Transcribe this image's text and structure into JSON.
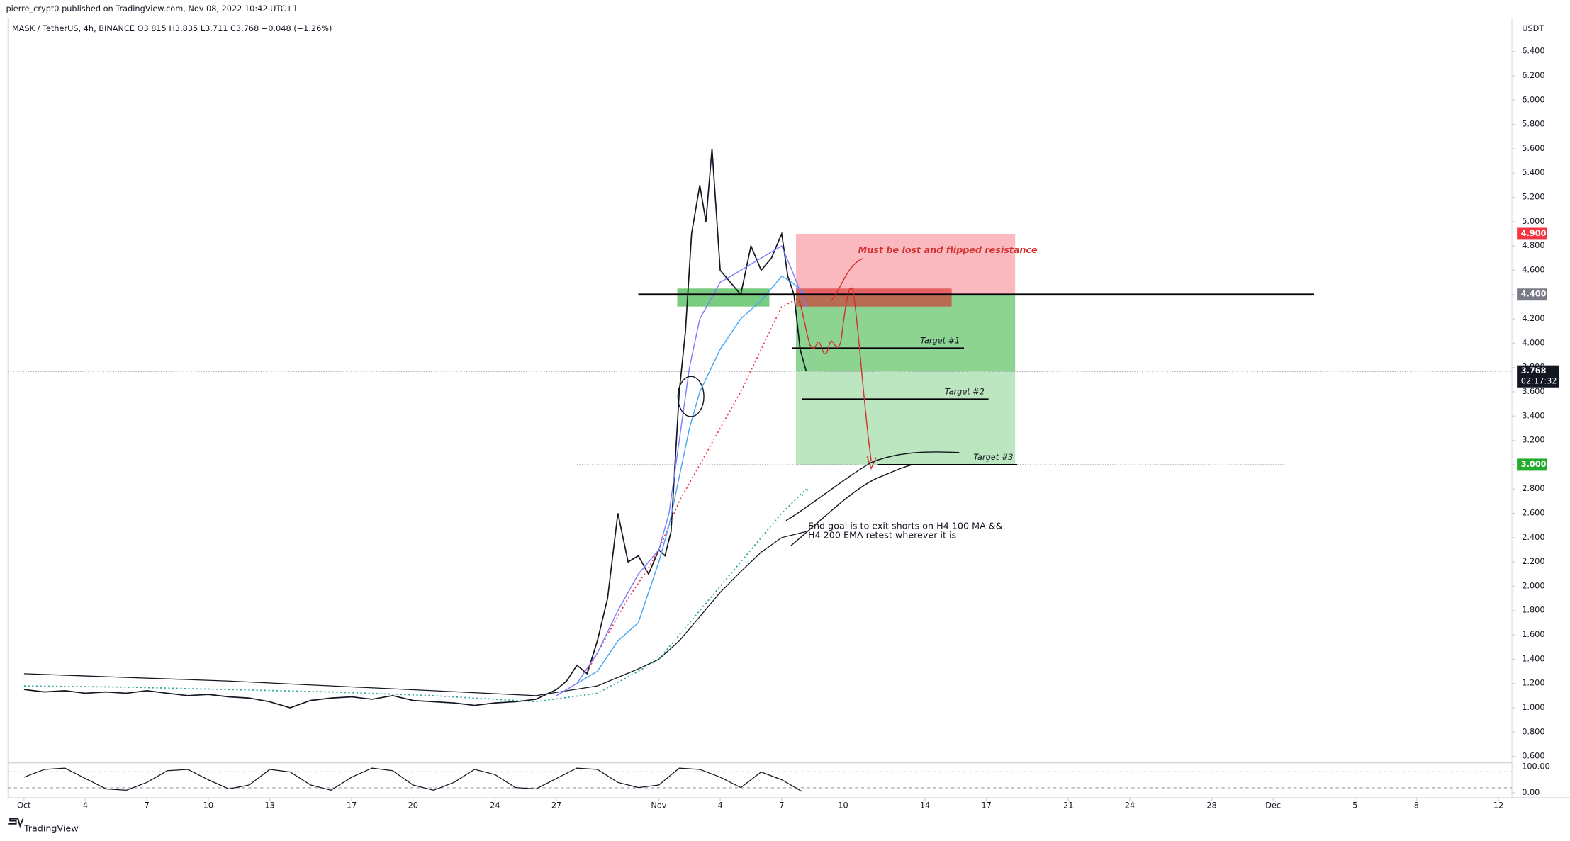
{
  "header": {
    "published": "pierre_crypt0 published on TradingView.com, Nov 08, 2022 10:42 UTC+1",
    "symbol": "MASK / TetherUS, 4h, BINANCE  O3.815  H3.835  L3.711  C3.768  −0.048 (−1.26%)",
    "currency": "USDT"
  },
  "footer": {
    "brand": "TradingView"
  },
  "chart_data": {
    "type": "line",
    "xlim": [
      -0.78,
      72.66
    ],
    "ylim": [
      0.5,
      6.6
    ],
    "xticks": [
      {
        "value": 0,
        "label": "Oct"
      },
      {
        "value": 3,
        "label": "4"
      },
      {
        "value": 6,
        "label": "7"
      },
      {
        "value": 9,
        "label": "10"
      },
      {
        "value": 12,
        "label": "13"
      },
      {
        "value": 16,
        "label": "17"
      },
      {
        "value": 19,
        "label": "20"
      },
      {
        "value": 23,
        "label": "24"
      },
      {
        "value": 26,
        "label": "27"
      },
      {
        "value": 31,
        "label": "Nov"
      },
      {
        "value": 34,
        "label": "4"
      },
      {
        "value": 37,
        "label": "7"
      },
      {
        "value": 40,
        "label": "10"
      },
      {
        "value": 44,
        "label": "14"
      },
      {
        "value": 47,
        "label": "17"
      },
      {
        "value": 51,
        "label": "21"
      },
      {
        "value": 54,
        "label": "24"
      },
      {
        "value": 58,
        "label": "28"
      },
      {
        "value": 61,
        "label": "Dec"
      },
      {
        "value": 65,
        "label": "5"
      },
      {
        "value": 68,
        "label": "8"
      },
      {
        "value": 72,
        "label": "12"
      }
    ],
    "yticks": [
      {
        "value": 0.6,
        "label": "0.600"
      },
      {
        "value": 0.8,
        "label": "0.800"
      },
      {
        "value": 1.0,
        "label": "1.000"
      },
      {
        "value": 1.2,
        "label": "1.200"
      },
      {
        "value": 1.4,
        "label": "1.400"
      },
      {
        "value": 1.6,
        "label": "1.600"
      },
      {
        "value": 1.8,
        "label": "1.800"
      },
      {
        "value": 2.0,
        "label": "2.000"
      },
      {
        "value": 2.2,
        "label": "2.200"
      },
      {
        "value": 2.4,
        "label": "2.400"
      },
      {
        "value": 2.6,
        "label": "2.600"
      },
      {
        "value": 2.8,
        "label": "2.800"
      },
      {
        "value": 3.0,
        "label": "3.000"
      },
      {
        "value": 3.2,
        "label": "3.200"
      },
      {
        "value": 3.4,
        "label": "3.400"
      },
      {
        "value": 3.6,
        "label": "3.600"
      },
      {
        "value": 3.8,
        "label": "3.800"
      },
      {
        "value": 4.0,
        "label": "4.000"
      },
      {
        "value": 4.2,
        "label": "4.200"
      },
      {
        "value": 4.4,
        "label": "4.400"
      },
      {
        "value": 4.6,
        "label": "4.600"
      },
      {
        "value": 4.8,
        "label": "4.800"
      },
      {
        "value": 5.0,
        "label": "5.000"
      },
      {
        "value": 5.2,
        "label": "5.200"
      },
      {
        "value": 5.4,
        "label": "5.400"
      },
      {
        "value": 5.6,
        "label": "5.600"
      },
      {
        "value": 5.8,
        "label": "5.800"
      },
      {
        "value": 6.0,
        "label": "6.000"
      },
      {
        "value": 6.2,
        "label": "6.200"
      },
      {
        "value": 6.4,
        "label": "6.400"
      }
    ],
    "series": [
      {
        "color": "#131722",
        "width": 1.2,
        "x": [
          0,
          1,
          2,
          3,
          4,
          5,
          6,
          7,
          8,
          9,
          10,
          11,
          12,
          13,
          14,
          15,
          16,
          17,
          18,
          19,
          20,
          21,
          22,
          23,
          24,
          25,
          26,
          26.5,
          27,
          27.5,
          28,
          28.5,
          29,
          29.5,
          30,
          30.5,
          31,
          31.3,
          31.6,
          32,
          32.3,
          32.6,
          33,
          33.3,
          33.6,
          34,
          34.5,
          35,
          35.5,
          36,
          36.5,
          37,
          37.3,
          37.6,
          37.9,
          38.2
        ],
        "values": [
          1.15,
          1.13,
          1.14,
          1.12,
          1.13,
          1.12,
          1.14,
          1.12,
          1.1,
          1.11,
          1.09,
          1.08,
          1.05,
          1.0,
          1.06,
          1.08,
          1.09,
          1.07,
          1.1,
          1.06,
          1.05,
          1.04,
          1.02,
          1.04,
          1.05,
          1.07,
          1.15,
          1.22,
          1.35,
          1.28,
          1.55,
          1.9,
          2.6,
          2.2,
          2.25,
          2.1,
          2.3,
          2.25,
          2.45,
          3.6,
          4.1,
          4.9,
          5.3,
          5.0,
          5.6,
          4.6,
          4.5,
          4.4,
          4.8,
          4.6,
          4.7,
          4.9,
          4.55,
          4.4,
          3.95,
          3.768
        ]
      },
      {
        "color": "#131722",
        "width": 0.9,
        "x": [
          0,
          5,
          10,
          15,
          20,
          25,
          28,
          30,
          31,
          32,
          33,
          34,
          35,
          36,
          37,
          38.2
        ],
        "values": [
          1.28,
          1.25,
          1.22,
          1.18,
          1.14,
          1.1,
          1.18,
          1.32,
          1.4,
          1.55,
          1.75,
          1.95,
          2.12,
          2.28,
          2.4,
          2.45
        ]
      },
      {
        "color": "#26a69a",
        "width": 1.2,
        "dash": "1.5 2.5",
        "x": [
          0,
          5,
          10,
          15,
          20,
          25,
          28,
          30,
          31,
          32,
          33,
          34,
          35,
          36,
          37,
          38.2
        ],
        "values": [
          1.18,
          1.17,
          1.15,
          1.13,
          1.1,
          1.05,
          1.12,
          1.3,
          1.4,
          1.6,
          1.8,
          2.0,
          2.2,
          2.4,
          2.6,
          2.8
        ]
      },
      {
        "color": "#f23645",
        "width": 1.2,
        "dash": "1.5 2.5",
        "x": [
          27.5,
          28.5,
          29.5,
          30.5,
          31,
          32,
          33,
          34,
          35,
          36,
          37,
          38.2
        ],
        "values": [
          1.3,
          1.6,
          1.9,
          2.15,
          2.3,
          2.7,
          3.0,
          3.3,
          3.6,
          3.95,
          4.3,
          4.4
        ]
      },
      {
        "color": "#7b7bff",
        "width": 1,
        "x": [
          26,
          27,
          28,
          29,
          30,
          31,
          31.5,
          32,
          32.5,
          33,
          34,
          35,
          36,
          37,
          37.5,
          38.2
        ],
        "values": [
          1.1,
          1.2,
          1.45,
          1.8,
          2.1,
          2.3,
          2.6,
          3.2,
          3.8,
          4.2,
          4.5,
          4.6,
          4.7,
          4.8,
          4.6,
          4.3
        ]
      },
      {
        "color": "#42a5f5",
        "width": 1,
        "x": [
          27,
          28,
          29,
          30,
          31,
          31.5,
          32,
          32.5,
          33,
          34,
          35,
          36,
          37,
          37.5,
          38.2
        ],
        "values": [
          1.2,
          1.3,
          1.55,
          1.7,
          2.2,
          2.5,
          2.9,
          3.3,
          3.6,
          3.95,
          4.2,
          4.35,
          4.55,
          4.5,
          4.4
        ]
      }
    ],
    "price_tags": [
      {
        "value": 4.9,
        "label": "4.900",
        "color": "#f23645"
      },
      {
        "value": 4.4,
        "label": "4.400",
        "color": "#787b86"
      },
      {
        "value": 3.768,
        "label": "3.768",
        "color": "#131722"
      },
      {
        "value": 3.0,
        "label": "3.000",
        "color": "#22ab2c"
      }
    ],
    "countdown": "02:17:32",
    "targets": [
      {
        "label": "Target #1",
        "value": 3.96
      },
      {
        "label": "Target #2",
        "value": 3.54
      },
      {
        "label": "Target #3",
        "value": 3.0
      }
    ],
    "notes": {
      "resistance": "Must be lost and flipped resistance",
      "goal_line1": "End goal is to exit shorts on H4 100 MA &&",
      "goal_line2": "H4 200 EMA retest wherever it is"
    },
    "oscillator": {
      "ylim": [
        0,
        100
      ],
      "yticks": [
        {
          "value": 100,
          "label": "100.00"
        },
        {
          "value": 0,
          "label": "0.00"
        }
      ],
      "color": "#131722",
      "x": [
        0,
        1,
        2,
        3,
        4,
        5,
        6,
        7,
        8,
        9,
        10,
        11,
        12,
        13,
        14,
        15,
        16,
        17,
        18,
        19,
        20,
        21,
        22,
        23,
        24,
        25,
        26,
        27,
        28,
        29,
        30,
        31,
        32,
        33,
        34,
        35,
        36,
        37,
        38
      ],
      "values": [
        60,
        90,
        95,
        55,
        15,
        10,
        40,
        85,
        90,
        50,
        15,
        30,
        90,
        80,
        30,
        10,
        60,
        95,
        85,
        30,
        10,
        40,
        90,
        70,
        20,
        15,
        55,
        95,
        90,
        40,
        20,
        30,
        95,
        90,
        60,
        20,
        80,
        50,
        5
      ]
    }
  }
}
